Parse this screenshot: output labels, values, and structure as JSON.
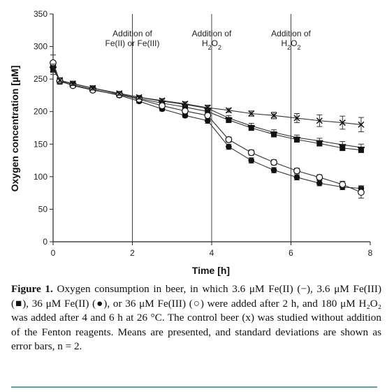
{
  "chart_data": {
    "type": "line",
    "xlabel": "Time [h]",
    "ylabel": "Oxygen concentration [µM]",
    "xlim": [
      0,
      8
    ],
    "ylim": [
      0,
      350
    ],
    "xticks": [
      0,
      2,
      4,
      6,
      8
    ],
    "yticks": [
      0,
      50,
      100,
      150,
      200,
      250,
      300,
      350
    ],
    "grid": false,
    "annotations": [
      {
        "x": 2,
        "lines": [
          "Addition of",
          "Fe(II) or Fe(III)"
        ]
      },
      {
        "x": 4,
        "lines": [
          "Addition of",
          "H2O2"
        ]
      },
      {
        "x": 6,
        "lines": [
          "Addition of",
          "H2O2"
        ]
      }
    ],
    "series": [
      {
        "marker": "dash",
        "x": [
          0,
          0.17,
          0.5,
          1.0,
          1.67,
          2.17,
          2.75,
          3.33,
          3.9,
          4.43,
          5.0,
          5.57,
          6.15,
          6.72,
          7.3,
          7.77
        ],
        "y": [
          268,
          247,
          243,
          236,
          228,
          222,
          216,
          211,
          205,
          190,
          178,
          168,
          160,
          155,
          149,
          145
        ],
        "err": [
          6,
          4,
          3,
          3,
          3,
          3,
          3,
          4,
          5,
          4,
          4,
          4,
          4,
          4,
          5,
          5
        ]
      },
      {
        "marker": "square",
        "x": [
          0,
          0.17,
          0.5,
          1.0,
          1.67,
          2.17,
          2.75,
          3.33,
          3.9,
          4.43,
          5.0,
          5.57,
          6.15,
          6.72,
          7.3,
          7.77
        ],
        "y": [
          265,
          248,
          243,
          236,
          227,
          220,
          213,
          207,
          200,
          187,
          175,
          165,
          157,
          151,
          144,
          141
        ],
        "err": [
          5,
          4,
          3,
          3,
          3,
          3,
          3,
          4,
          4,
          4,
          4,
          4,
          4,
          4,
          4,
          4
        ]
      },
      {
        "marker": "filled-circle",
        "x": [
          0,
          0.17,
          0.5,
          1.0,
          1.67,
          2.17,
          2.75,
          3.33,
          3.9,
          4.43,
          5.0,
          5.57,
          6.15,
          6.72,
          7.3,
          7.77
        ],
        "y": [
          270,
          246,
          241,
          234,
          225,
          216,
          204,
          194,
          186,
          146,
          125,
          110,
          99,
          90,
          84,
          82
        ],
        "err": [
          6,
          4,
          3,
          3,
          3,
          3,
          3,
          3,
          4,
          4,
          4,
          4,
          4,
          4,
          4,
          4
        ]
      },
      {
        "marker": "open-circle",
        "x": [
          0,
          0.17,
          0.5,
          1.0,
          1.67,
          2.17,
          2.75,
          3.33,
          3.9,
          4.43,
          5.0,
          5.57,
          6.15,
          6.72,
          7.3,
          7.77
        ],
        "y": [
          275,
          247,
          240,
          233,
          226,
          219,
          209,
          201,
          194,
          157,
          137,
          122,
          109,
          99,
          88,
          76
        ],
        "err": [
          12,
          4,
          3,
          3,
          3,
          3,
          3,
          3,
          4,
          4,
          4,
          4,
          4,
          4,
          5,
          9
        ]
      },
      {
        "marker": "x",
        "x": [
          0,
          0.17,
          0.5,
          1.0,
          1.67,
          2.17,
          2.75,
          3.33,
          3.9,
          4.43,
          5.0,
          5.57,
          6.15,
          6.72,
          7.3,
          7.77
        ],
        "y": [
          265,
          248,
          243,
          236,
          228,
          222,
          217,
          212,
          206,
          202,
          197,
          194,
          190,
          186,
          183,
          180
        ],
        "err": [
          8,
          4,
          3,
          3,
          3,
          3,
          3,
          3,
          3,
          3,
          4,
          5,
          7,
          9,
          10,
          11
        ]
      }
    ]
  },
  "caption": {
    "lead": "Figure 1.",
    "body": " Oxygen consumption in beer, in which 3.6 μM Fe(II) (−), 3.6 μM Fe(III) (■), 36 μM Fe(II) (●), or 36 μM Fe(III) (○) were added after 2 h, and 180 μM H₂O₂ was added after 4 and 6 h at 26 °C. The control beer (x) was studied without addition of the Fenton reagents. Means are presented, and standard deviations are shown as error bars, n = 2."
  }
}
